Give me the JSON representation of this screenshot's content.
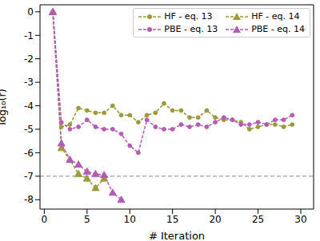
{
  "chart_data": {
    "type": "line",
    "x_label": "# Iteration",
    "y_label": "log₁₀(r)",
    "xlim": [
      -0.5,
      31.5
    ],
    "xticks": [
      0,
      5,
      10,
      15,
      20,
      25,
      30
    ],
    "ylim": [
      -8.4,
      0.3
    ],
    "yticks": [
      -8,
      -7,
      -6,
      -5,
      -4,
      -3,
      -2,
      -1,
      0
    ],
    "reference_line": -7,
    "legend": "upper right",
    "grid": false,
    "series": [
      {
        "name": "HF - eq. 13",
        "color": "#9c9a3c",
        "marker": "circle",
        "line_style": "dashed",
        "x": [
          1,
          2,
          3,
          4,
          5,
          6,
          7,
          8,
          9,
          10,
          11,
          12,
          13,
          14,
          15,
          16,
          17,
          18,
          19,
          20,
          21,
          22,
          23,
          24,
          25,
          26,
          27,
          28,
          29
        ],
        "values": [
          0,
          -4.9,
          -4.8,
          -4.1,
          -4.2,
          -4.3,
          -4.3,
          -4.0,
          -4.4,
          -4.4,
          -4.7,
          -4.4,
          -4.3,
          -3.9,
          -4.2,
          -4.2,
          -4.5,
          -4.5,
          -4.2,
          -4.5,
          -4.6,
          -4.6,
          -4.7,
          -5.0,
          -4.9,
          -4.8,
          -4.8,
          -4.9,
          -4.8
        ]
      },
      {
        "name": "PBE - eq. 13",
        "color": "#b55bb5",
        "marker": "circle",
        "line_style": "dashed",
        "x": [
          1,
          2,
          3,
          4,
          5,
          6,
          7,
          8,
          9,
          10,
          11,
          12,
          13,
          14,
          15,
          16,
          17,
          18,
          19,
          20,
          21,
          22,
          23,
          24,
          25,
          26,
          27,
          28,
          29
        ],
        "values": [
          0,
          -4.7,
          -5.0,
          -4.9,
          -4.6,
          -4.9,
          -5.0,
          -5.0,
          -5.2,
          -5.7,
          -6.0,
          -4.6,
          -4.9,
          -5.0,
          -5.0,
          -4.8,
          -4.9,
          -4.8,
          -4.9,
          -4.7,
          -4.5,
          -4.6,
          -4.8,
          -4.8,
          -4.7,
          -4.8,
          -4.6,
          -4.6,
          -4.4
        ]
      },
      {
        "name": "HF - eq. 14",
        "color": "#9c9a3c",
        "marker": "triangle",
        "line_style": "dashed",
        "x": [
          1,
          2,
          3,
          4,
          5,
          6,
          7
        ],
        "values": [
          0,
          -5.8,
          -6.3,
          -6.9,
          -7.1,
          -7.5,
          -7.1
        ]
      },
      {
        "name": "PBE - eq. 14",
        "color": "#b55bb5",
        "marker": "triangle",
        "line_style": "dashed",
        "x": [
          1,
          2,
          3,
          4,
          5,
          6,
          7,
          8,
          9
        ],
        "values": [
          0,
          -5.6,
          -6.3,
          -6.5,
          -6.8,
          -6.9,
          -6.95,
          -7.7,
          -8.0
        ]
      }
    ]
  }
}
